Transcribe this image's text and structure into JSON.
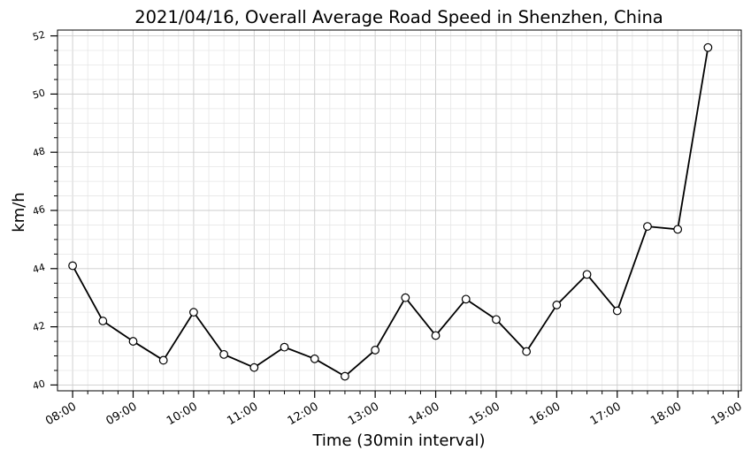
{
  "chart_data": {
    "type": "line",
    "title": "2021/04/16, Overall Average Road Speed in Shenzhen, China",
    "xlabel": "Time (30min interval)",
    "ylabel": "km/h",
    "xlim_minutes": [
      465,
      1143
    ],
    "ylim": [
      39.8,
      52.2
    ],
    "grid": true,
    "x_ticks": [
      "08:00",
      "09:00",
      "10:00",
      "11:00",
      "12:00",
      "13:00",
      "14:00",
      "15:00",
      "16:00",
      "17:00",
      "18:00",
      "19:00"
    ],
    "y_ticks": [
      40,
      42,
      44,
      46,
      48,
      50,
      52
    ],
    "series": [
      {
        "name": "Overall Average Road Speed",
        "color": "#000000",
        "marker_face": "#ffffff",
        "x": [
          "08:00",
          "08:30",
          "09:00",
          "09:30",
          "10:00",
          "10:30",
          "11:00",
          "11:30",
          "12:00",
          "12:30",
          "13:00",
          "13:30",
          "14:00",
          "14:30",
          "15:00",
          "15:30",
          "16:00",
          "16:30",
          "17:00",
          "17:30",
          "18:00",
          "18:30"
        ],
        "values": [
          44.1,
          42.2,
          41.5,
          40.85,
          42.5,
          41.05,
          40.6,
          41.3,
          40.9,
          40.3,
          41.2,
          43.0,
          41.7,
          42.95,
          42.25,
          41.15,
          42.75,
          43.8,
          42.55,
          45.45,
          45.35,
          51.6
        ]
      }
    ]
  }
}
